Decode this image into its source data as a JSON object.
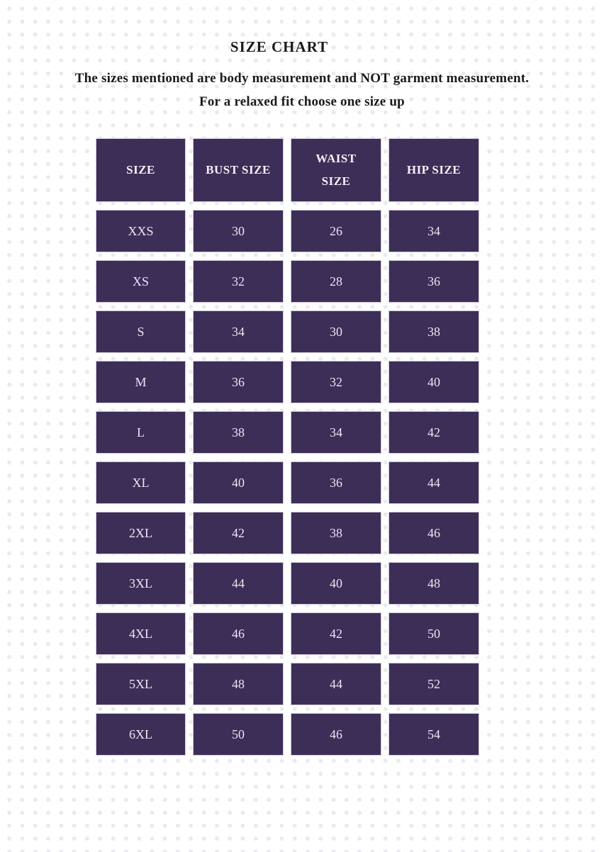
{
  "colors": {
    "page_bg": "#ffffff",
    "dot": "#e9e9ef",
    "cell_bg": "#3d2e57",
    "cell_border": "#cdc9d8",
    "cell_text": "#eae6f2",
    "header_text": "#f4f1f8",
    "heading_text": "#1b1b1d"
  },
  "chart_data": {
    "type": "table",
    "title": "SIZE CHART",
    "notes": [
      "The sizes mentioned are body measurement and NOT garment measurement.",
      "For a relaxed fit choose one size up"
    ],
    "columns": [
      "SIZE",
      "BUST SIZE",
      "WAIST SIZE",
      "HIP SIZE"
    ],
    "rows": [
      [
        "XXS",
        30,
        26,
        34
      ],
      [
        "XS",
        32,
        28,
        36
      ],
      [
        "S",
        34,
        30,
        38
      ],
      [
        "M",
        36,
        32,
        40
      ],
      [
        "L",
        38,
        34,
        42
      ],
      [
        "XL",
        40,
        36,
        44
      ],
      [
        "2XL",
        42,
        38,
        46
      ],
      [
        "3XL",
        44,
        40,
        48
      ],
      [
        "4XL",
        46,
        42,
        50
      ],
      [
        "5XL",
        48,
        44,
        52
      ],
      [
        "6XL",
        50,
        46,
        54
      ]
    ]
  }
}
